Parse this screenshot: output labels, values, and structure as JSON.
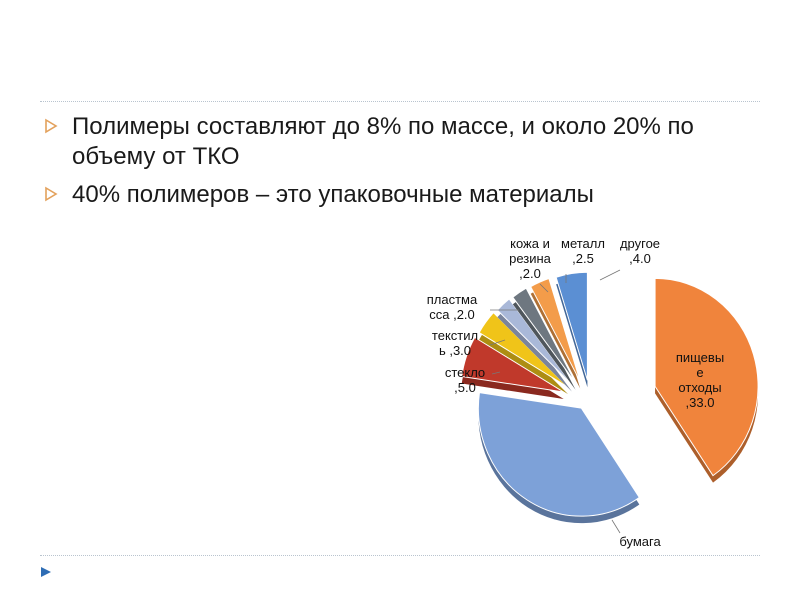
{
  "bullets": [
    {
      "text": "Полимеры составляют до 8% по массе, и около 20% по объему от ТКО"
    },
    {
      "text": "40% полимеров – это упаковочные материалы"
    }
  ],
  "colors": {
    "bullet_marker": "#e3a15c",
    "nav_arrow": "#2e6db4",
    "rule": "#b9c4cf"
  },
  "chart_data": {
    "type": "pie",
    "style": "exploded-3d",
    "slices": [
      {
        "name": "пищевые отходы",
        "value": 33.0,
        "label_lines": [
          "пищевы",
          "е",
          "отходы",
          ",33.0"
        ],
        "color": "#f0843c"
      },
      {
        "name": "бумага",
        "value": 30.0,
        "label_lines": [
          "бумага"
        ],
        "color": "#7da1d8"
      },
      {
        "name": "стекло",
        "value": 5.0,
        "label_lines": [
          "стекло",
          ",5.0"
        ],
        "color": "#c0392b"
      },
      {
        "name": "текстиль",
        "value": 3.0,
        "label_lines": [
          "текстил",
          "ь ,3.0"
        ],
        "color": "#f0c419"
      },
      {
        "name": "пластмасса",
        "value": 2.0,
        "label_lines": [
          "пластма",
          "сса ,2.0"
        ],
        "color": "#a9b8d8"
      },
      {
        "name": "кожа и резина",
        "value": 2.0,
        "label_lines": [
          "кожа и",
          "резина",
          ",2.0"
        ],
        "color": "#6e7780"
      },
      {
        "name": "металл",
        "value": 2.5,
        "label_lines": [
          "металл",
          ",2.5"
        ],
        "color": "#f39c4a"
      },
      {
        "name": "другое",
        "value": 4.0,
        "label_lines": [
          "другое",
          ",4.0"
        ],
        "color": "#5b8fd3"
      }
    ]
  }
}
